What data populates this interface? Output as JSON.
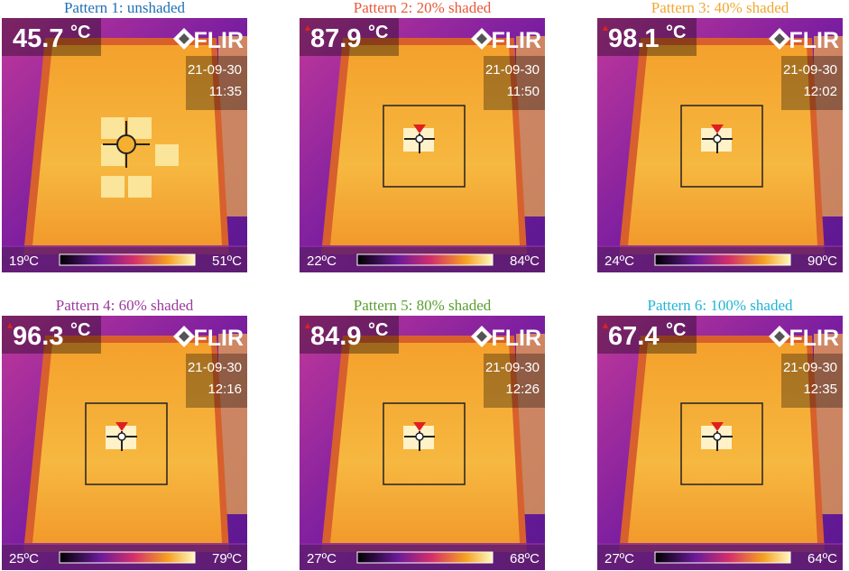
{
  "panels": [
    {
      "title": "Pattern 1: unshaded",
      "reading": "45.7",
      "unit": "°C",
      "logo": "FLIR",
      "date": "21-09-30",
      "time": "11:35",
      "scale_min": "19ºC",
      "scale_max": "51ºC",
      "color": "#1f6fb5"
    },
    {
      "title": "Pattern 2: 20% shaded",
      "reading": "87.9",
      "unit": "°C",
      "logo": "FLIR",
      "date": "21-09-30",
      "time": "11:50",
      "scale_min": "22ºC",
      "scale_max": "84ºC",
      "color": "#e8593a"
    },
    {
      "title": "Pattern 3: 40% shaded",
      "reading": "98.1",
      "unit": "°C",
      "logo": "FLIR",
      "date": "21-09-30",
      "time": "12:02",
      "scale_min": "24ºC",
      "scale_max": "90ºC",
      "color": "#f0a830"
    },
    {
      "title": "Pattern 4: 60% shaded",
      "reading": "96.3",
      "unit": "°C",
      "logo": "FLIR",
      "date": "21-09-30",
      "time": "12:16",
      "scale_min": "25ºC",
      "scale_max": "79ºC",
      "color": "#9b3a9b"
    },
    {
      "title": "Pattern 5: 80% shaded",
      "reading": "84.9",
      "unit": "°C",
      "logo": "FLIR",
      "date": "21-09-30",
      "time": "12:26",
      "scale_min": "27ºC",
      "scale_max": "68ºC",
      "color": "#5a9e2f"
    },
    {
      "title": "Pattern 6: 100% shaded",
      "reading": "67.4",
      "unit": "°C",
      "logo": "FLIR",
      "date": "21-09-30",
      "time": "12:35",
      "scale_min": "27ºC",
      "scale_max": "64ºC",
      "color": "#1fb5d6"
    }
  ]
}
